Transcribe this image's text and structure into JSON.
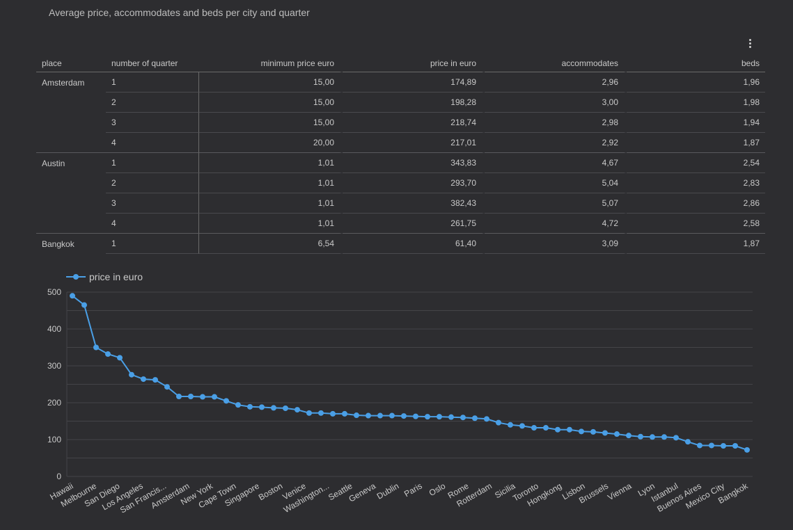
{
  "page": {
    "title": "Average price, accommodates and beds per city and quarter",
    "menu_icon": "more-vert-icon"
  },
  "table": {
    "headers": [
      "place",
      "number of quarter",
      "minimum price euro",
      "price in euro",
      "accommodates",
      "beds"
    ],
    "rows": [
      {
        "place": "Amsterdam",
        "quarter": "1",
        "min_price": "15,00",
        "price": "174,89",
        "accommodates": "2,96",
        "beds": "1,96"
      },
      {
        "place": "",
        "quarter": "2",
        "min_price": "15,00",
        "price": "198,28",
        "accommodates": "3,00",
        "beds": "1,98"
      },
      {
        "place": "",
        "quarter": "3",
        "min_price": "15,00",
        "price": "218,74",
        "accommodates": "2,98",
        "beds": "1,94"
      },
      {
        "place": "",
        "quarter": "4",
        "min_price": "20,00",
        "price": "217,01",
        "accommodates": "2,92",
        "beds": "1,87"
      },
      {
        "place": "Austin",
        "quarter": "1",
        "min_price": "1,01",
        "price": "343,83",
        "accommodates": "4,67",
        "beds": "2,54"
      },
      {
        "place": "",
        "quarter": "2",
        "min_price": "1,01",
        "price": "293,70",
        "accommodates": "5,04",
        "beds": "2,83"
      },
      {
        "place": "",
        "quarter": "3",
        "min_price": "1,01",
        "price": "382,43",
        "accommodates": "5,07",
        "beds": "2,86"
      },
      {
        "place": "",
        "quarter": "4",
        "min_price": "1,01",
        "price": "261,75",
        "accommodates": "4,72",
        "beds": "2,58"
      },
      {
        "place": "Bangkok",
        "quarter": "1",
        "min_price": "6,54",
        "price": "61,40",
        "accommodates": "3,09",
        "beds": "1,87"
      }
    ]
  },
  "colors": {
    "background": "#2d2d30",
    "series": "#4a9fe6",
    "grid": "#444448",
    "text": "#c9c9c9"
  },
  "chart_data": {
    "type": "line",
    "title": "",
    "xlabel": "",
    "ylabel": "",
    "legend": "top-left",
    "grid": true,
    "ylim": [
      0,
      500
    ],
    "yticks": [
      0,
      100,
      200,
      300,
      400,
      500
    ],
    "x_tick_labels": [
      "Hawaii",
      "Melbourne",
      "San Diego",
      "Los Angeles",
      "San Francis...",
      "Amsterdam",
      "New York",
      "Cape Town",
      "Singapore",
      "Boston",
      "Venice",
      "Washington...",
      "Seattle",
      "Geneva",
      "Dublin",
      "Paris",
      "Oslo",
      "Rome",
      "Rotterdam",
      "Sicilia",
      "Toronto",
      "Hongkong",
      "Lisbon",
      "Brussels",
      "Vienna",
      "Lyon",
      "Istanbul",
      "Buenos Aires",
      "Mexico City",
      "Bangkok"
    ],
    "series": [
      {
        "name": "price in euro",
        "values": [
          490,
          465,
          350,
          332,
          322,
          276,
          264,
          262,
          243,
          217,
          217,
          216,
          216,
          205,
          194,
          189,
          188,
          186,
          185,
          181,
          172,
          172,
          170,
          170,
          166,
          165,
          165,
          165,
          164,
          163,
          162,
          162,
          161,
          160,
          158,
          156,
          146,
          140,
          137,
          132,
          132,
          127,
          127,
          122,
          121,
          118,
          115,
          111,
          108,
          107,
          107,
          105,
          94,
          84,
          84,
          83,
          83,
          72
        ]
      }
    ]
  }
}
